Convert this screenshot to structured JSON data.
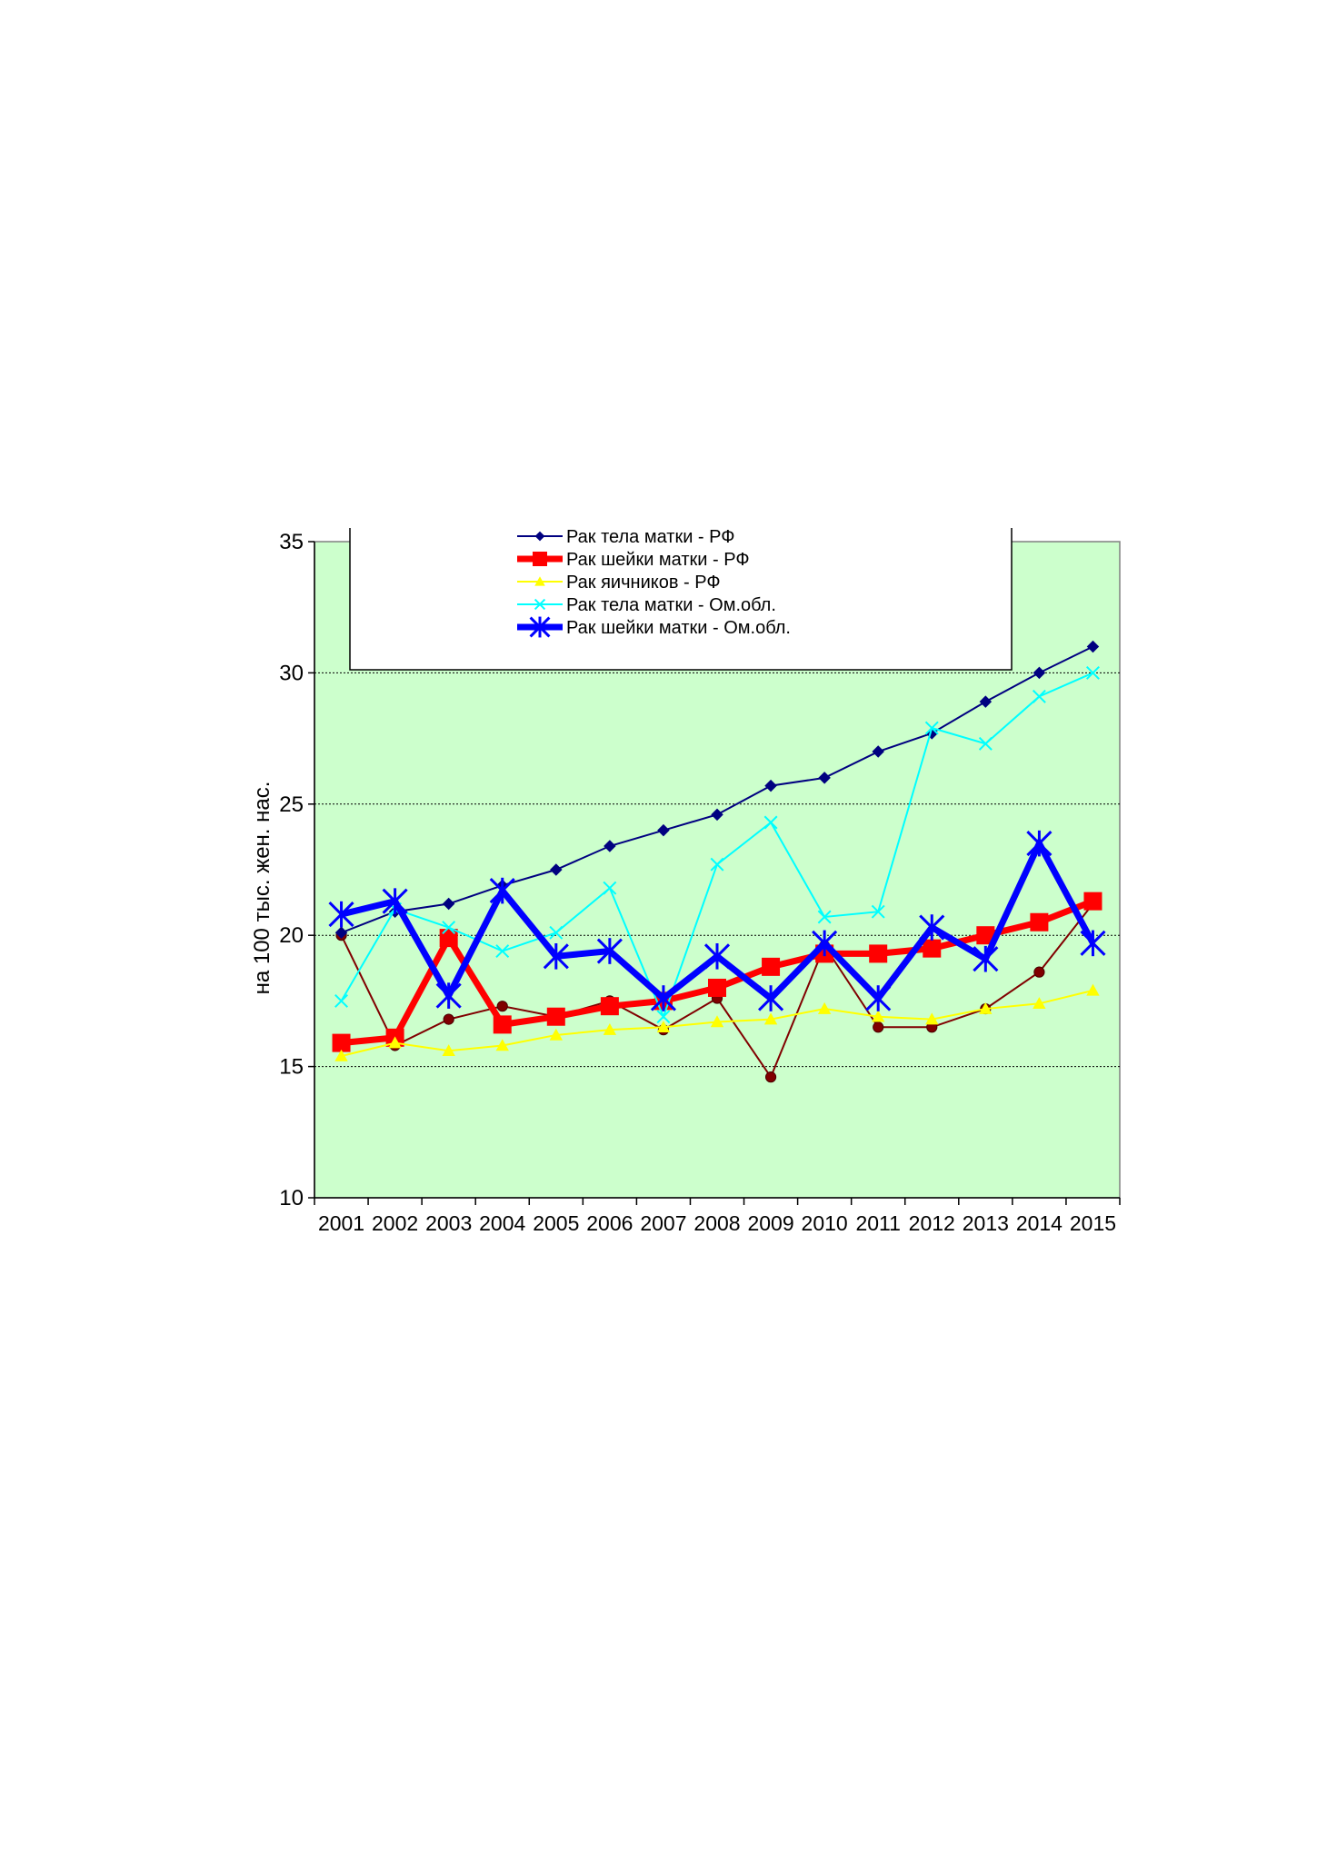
{
  "chart_data": {
    "type": "line",
    "title": "",
    "xlabel": "",
    "ylabel": "на 100 тыс. жен. нас.",
    "ylim": [
      10,
      35
    ],
    "yticks": [
      10,
      15,
      20,
      25,
      30,
      35
    ],
    "grid": "horizontal dashed at 15, 20, 25, 30",
    "legend_position": "top",
    "plot_background": "#ccffcc",
    "categories": [
      "2001",
      "2002",
      "2003",
      "2004",
      "2005",
      "2006",
      "2007",
      "2008",
      "2009",
      "2010",
      "2011",
      "2012",
      "2013",
      "2014",
      "2015"
    ],
    "series": [
      {
        "name": "",
        "color": "#800000",
        "marker": "circle",
        "values": [
          20.0,
          15.8,
          16.8,
          17.3,
          16.9,
          17.5,
          16.4,
          17.6,
          14.6,
          19.6,
          16.5,
          16.5,
          17.2,
          18.6,
          21.2
        ]
      },
      {
        "name": "Рак тела матки - РФ",
        "color": "#000080",
        "marker": "diamond",
        "values": [
          20.1,
          20.9,
          21.2,
          21.9,
          22.5,
          23.4,
          24.0,
          24.6,
          25.7,
          26.0,
          27.0,
          27.7,
          28.9,
          30.0,
          31.0
        ]
      },
      {
        "name": "Рак шейки матки - РФ",
        "color": "#ff0000",
        "marker": "square",
        "values": [
          15.9,
          16.1,
          19.9,
          16.6,
          16.9,
          17.3,
          17.5,
          18.0,
          18.8,
          19.3,
          19.3,
          19.5,
          20.0,
          20.5,
          21.3
        ]
      },
      {
        "name": "Рак яичников - РФ",
        "color": "#ffff00",
        "marker": "triangle",
        "values": [
          15.4,
          15.9,
          15.6,
          15.8,
          16.2,
          16.4,
          16.5,
          16.7,
          16.8,
          17.2,
          16.9,
          16.8,
          17.2,
          17.4,
          17.9
        ]
      },
      {
        "name": "Рак тела матки - Ом.обл.",
        "color": "#00ffff",
        "marker": "x",
        "values": [
          17.5,
          21.0,
          20.3,
          19.4,
          20.1,
          21.8,
          16.9,
          22.7,
          24.3,
          20.7,
          20.9,
          27.9,
          27.3,
          29.1,
          30.0
        ]
      },
      {
        "name": "Рак шейки матки - Ом.обл.",
        "color": "#0000ff",
        "marker": "star",
        "values": [
          20.8,
          21.3,
          17.7,
          21.7,
          19.2,
          19.4,
          17.6,
          19.2,
          17.6,
          19.7,
          17.6,
          20.3,
          19.1,
          23.5,
          19.7
        ]
      }
    ]
  }
}
